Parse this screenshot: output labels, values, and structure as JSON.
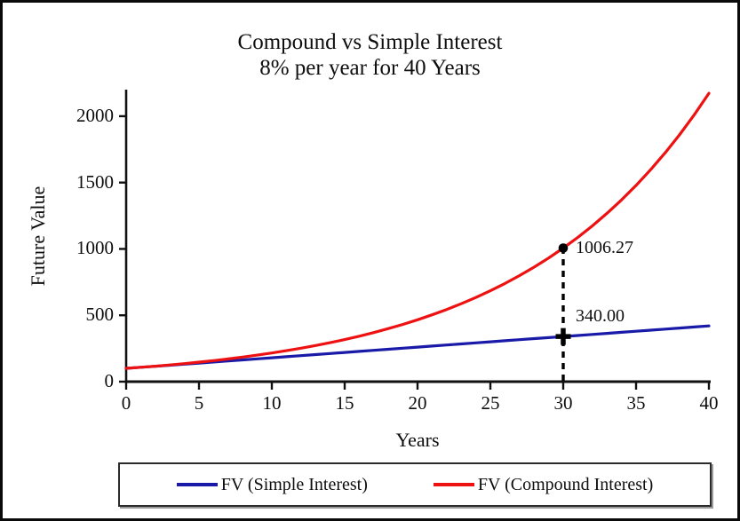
{
  "title": {
    "line1": "Compound vs Simple Interest",
    "line2": "8% per year for 40 Years"
  },
  "colors": {
    "simple": "#1a1aa8",
    "compound": "#ee1111",
    "axis": "#111111",
    "marker": "#000000",
    "background": "#ffffff",
    "frame_border": "#0a0a0a"
  },
  "legend": {
    "items": [
      {
        "label": "FV (Simple Interest)",
        "color": "#1a1aa8"
      },
      {
        "label": "FV (Compound Interest)",
        "color": "#ee1111"
      }
    ]
  },
  "chart_data": {
    "type": "line",
    "title": "Compound vs Simple Interest",
    "subtitle": "8% per year for 40 Years",
    "xlabel": "Years",
    "ylabel": "Future Value",
    "xlim": [
      0,
      40
    ],
    "ylim": [
      0,
      2200
    ],
    "x_ticks": [
      0,
      5,
      10,
      15,
      20,
      25,
      30,
      35,
      40
    ],
    "y_ticks": [
      0,
      500,
      1000,
      1500,
      2000
    ],
    "grid": false,
    "legend_position": "bottom",
    "x": [
      0,
      1,
      2,
      3,
      4,
      5,
      6,
      7,
      8,
      9,
      10,
      11,
      12,
      13,
      14,
      15,
      16,
      17,
      18,
      19,
      20,
      21,
      22,
      23,
      24,
      25,
      26,
      27,
      28,
      29,
      30,
      31,
      32,
      33,
      34,
      35,
      36,
      37,
      38,
      39,
      40
    ],
    "series": [
      {
        "name": "FV (Simple Interest)",
        "color": "#1a1aa8",
        "values": [
          100,
          108,
          116,
          124,
          132,
          140,
          148,
          156,
          164,
          172,
          180,
          188,
          196,
          204,
          212,
          220,
          228,
          236,
          244,
          252,
          260,
          268,
          276,
          284,
          292,
          300,
          308,
          316,
          324,
          332,
          340,
          348,
          356,
          364,
          372,
          380,
          388,
          396,
          404,
          412,
          420
        ]
      },
      {
        "name": "FV (Compound Interest)",
        "color": "#ee1111",
        "values": [
          100,
          108,
          116.64,
          125.97,
          136.05,
          146.93,
          158.69,
          171.38,
          185.09,
          199.9,
          215.89,
          233.16,
          251.82,
          271.96,
          293.72,
          317.22,
          342.59,
          370,
          399.6,
          431.57,
          466.1,
          503.38,
          543.65,
          587.15,
          634.12,
          684.85,
          739.64,
          798.81,
          862.71,
          931.73,
          1006.27,
          1086.77,
          1173.71,
          1267.6,
          1369.01,
          1478.53,
          1596.82,
          1724.56,
          1862.53,
          2011.53,
          2172.45
        ]
      }
    ],
    "annotations": [
      {
        "x": 30,
        "y": 1006.27,
        "label": "1006.27",
        "marker": "dot",
        "series": "compound"
      },
      {
        "x": 30,
        "y": 340,
        "label": "340.00",
        "marker": "plus",
        "series": "simple"
      }
    ],
    "guide_line": {
      "x": 30,
      "y_from": 0,
      "y_to": 1006.27,
      "style": "dashed"
    }
  }
}
